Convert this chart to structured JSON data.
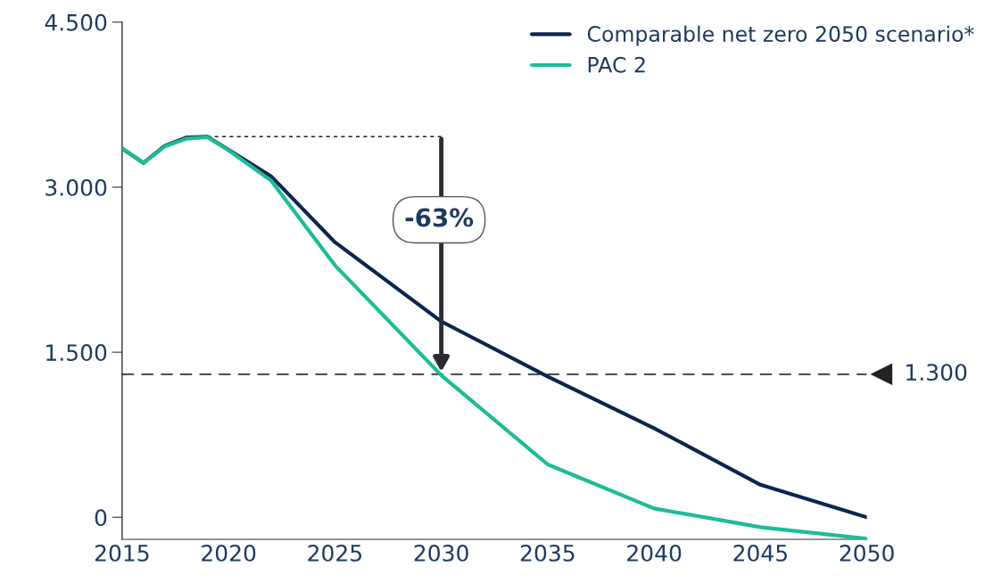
{
  "chart_data": {
    "type": "line",
    "x": [
      2015,
      2016,
      2017,
      2018,
      2019,
      2020,
      2022,
      2025,
      2030,
      2035,
      2040,
      2045,
      2050
    ],
    "series": [
      {
        "name": "Comparable net zero 2050 scenario*",
        "color": "#0b2550",
        "values": [
          3352,
          3220,
          3375,
          3450,
          3460,
          3340,
          3100,
          2500,
          1780,
          1280,
          810,
          295,
          0
        ]
      },
      {
        "name": "PAC 2",
        "color": "#1dbc96",
        "values": [
          3352,
          3220,
          3370,
          3440,
          3455,
          3336,
          3060,
          2290,
          1290,
          480,
          80,
          -90,
          -195
        ]
      }
    ],
    "xlim": [
      2015,
      2050
    ],
    "xticks": [
      2015,
      2020,
      2025,
      2030,
      2035,
      2040,
      2045,
      2050
    ],
    "ylim": [
      -200,
      4500
    ],
    "yticks": [
      {
        "value": 0,
        "label": "0"
      },
      {
        "value": 1500,
        "label": "1.500"
      },
      {
        "value": 3000,
        "label": "3.000"
      },
      {
        "value": 4500,
        "label": "4.500"
      }
    ],
    "ref_lines": [
      {
        "axis": "y",
        "value": 1300,
        "label": "1.300",
        "color": "#333333",
        "line_style": "dashed"
      }
    ],
    "annotations": [
      "-63%"
    ],
    "legend": "top right",
    "grid": false,
    "line_style": "solid",
    "marker": "none"
  }
}
